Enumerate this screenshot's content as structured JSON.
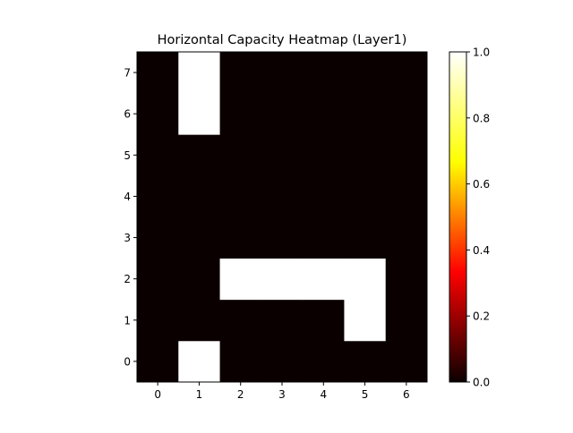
{
  "chart_data": {
    "type": "heatmap",
    "title": "Horizontal Capacity Heatmap (Layer1)",
    "xlabel": "",
    "ylabel": "",
    "x": [
      0,
      1,
      2,
      3,
      4,
      5,
      6
    ],
    "y": [
      0,
      1,
      2,
      3,
      4,
      5,
      6,
      7
    ],
    "xlim": [
      -0.5,
      6.5
    ],
    "ylim": [
      -0.5,
      7.5
    ],
    "y_direction": "bottom-to-top",
    "values": [
      [
        0,
        1,
        0,
        0,
        0,
        0,
        0
      ],
      [
        0,
        0,
        0,
        0,
        0,
        1,
        0
      ],
      [
        0,
        0,
        1,
        1,
        1,
        1,
        0
      ],
      [
        0,
        0,
        0,
        0,
        0,
        0,
        0
      ],
      [
        0,
        0,
        0,
        0,
        0,
        0,
        0
      ],
      [
        0,
        0,
        0,
        0,
        0,
        0,
        0
      ],
      [
        0,
        1,
        0,
        0,
        0,
        0,
        0
      ],
      [
        0,
        1,
        0,
        0,
        0,
        0,
        0
      ]
    ],
    "colormap": "hot",
    "colormap_stops": [
      "#0b0000",
      "#ff0000",
      "#ffff00",
      "#ffffff"
    ],
    "colorbar": {
      "range": [
        0.0,
        1.0
      ],
      "ticks": [
        "0.0",
        "0.2",
        "0.4",
        "0.6",
        "0.8",
        "1.0"
      ],
      "placement": "right"
    },
    "grid": false
  }
}
